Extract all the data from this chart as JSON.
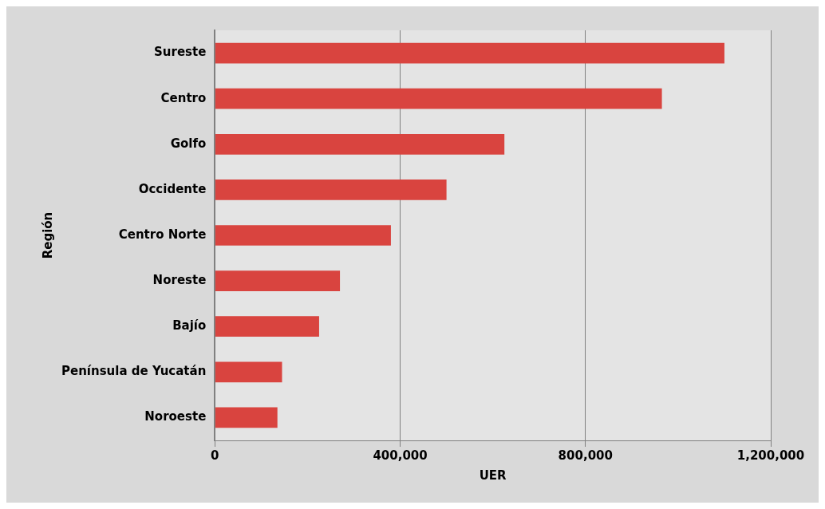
{
  "chart_data": {
    "type": "bar",
    "orientation": "horizontal",
    "xlabel": "UER",
    "ylabel": "Región",
    "categories": [
      "Sureste",
      "Centro",
      "Golfo",
      "Occidente",
      "Centro Norte",
      "Noreste",
      "Bajío",
      "Península de Yucatán",
      "Noroeste"
    ],
    "values": [
      1100000,
      965000,
      625000,
      500000,
      380000,
      270000,
      225000,
      145000,
      135000
    ],
    "color": "#d9443f",
    "xlim": [
      0,
      1200000
    ],
    "xticks": [
      0,
      {
        "value": 400000,
        "label": "400,000"
      },
      {
        "value": 800000,
        "label": "800,000"
      },
      {
        "value": 1200000,
        "label": "1,200,000"
      }
    ],
    "grid": "x",
    "legend": false
  }
}
